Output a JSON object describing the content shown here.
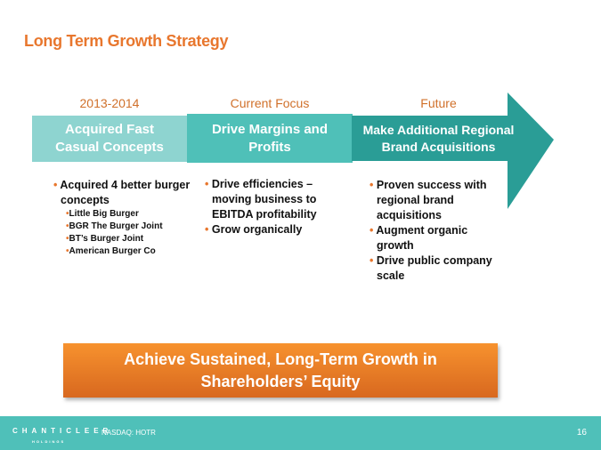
{
  "title": "Long Term Growth Strategy",
  "phases": [
    {
      "period": "2013-2014",
      "heading": "Acquired Fast Casual Concepts",
      "bullets": [
        "Acquired 4 better burger concepts"
      ],
      "sub_bullets": [
        "Little Big Burger",
        "BGR The Burger Joint",
        "BT’s Burger Joint",
        "American Burger Co"
      ]
    },
    {
      "period": "Current Focus",
      "heading": "Drive Margins and Profits",
      "bullets": [
        "Drive efficiencies – moving business to EBITDA profitability",
        "Grow organically"
      ]
    },
    {
      "period": "Future",
      "heading": "Make Additional Regional Brand Acquisitions",
      "bullets": [
        "Proven success with regional brand acquisitions",
        "Augment organic growth",
        "Drive public company scale"
      ]
    }
  ],
  "banner": "Achieve Sustained, Long-Term Growth in Shareholders’ Equity",
  "footer": {
    "logo": "CHANTICLEER",
    "logo_sub": "HOLDINGS",
    "ticker": "NASDAQ: HOTR",
    "page": "16"
  },
  "colors": {
    "accent": "#e8772e",
    "teal": "#4fc0b9",
    "dark_teal": "#2a9d96"
  }
}
